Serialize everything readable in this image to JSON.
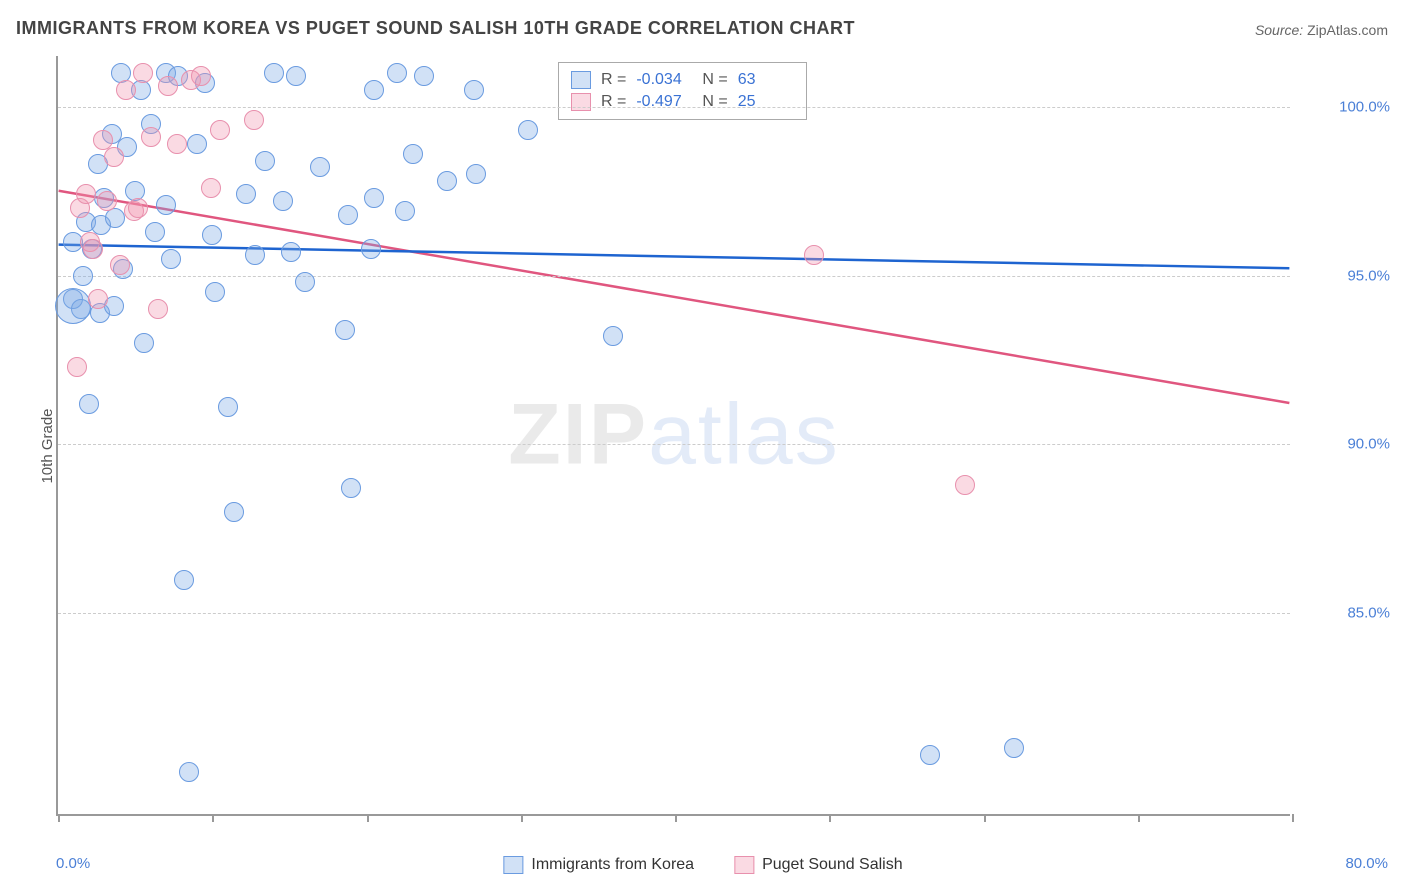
{
  "title": "IMMIGRANTS FROM KOREA VS PUGET SOUND SALISH 10TH GRADE CORRELATION CHART",
  "source_label": "Source:",
  "source_value": "ZipAtlas.com",
  "ylabel": "10th Grade",
  "watermark": {
    "zip": "ZIP",
    "atlas": "atlas"
  },
  "colors": {
    "series_a_fill": "rgba(122,168,230,0.35)",
    "series_a_stroke": "#6a9be0",
    "series_b_fill": "rgba(240,148,175,0.35)",
    "series_b_stroke": "#e890ad",
    "trend_a": "#1e64d0",
    "trend_b": "#e0567f",
    "axis_label": "#4a7fd6",
    "text": "#555555",
    "grid": "#cccccc"
  },
  "chart": {
    "type": "scatter",
    "xlim": [
      0,
      80
    ],
    "ylim": [
      79,
      101.5
    ],
    "x_ticks": [
      0,
      10,
      20,
      30,
      40,
      50,
      60,
      70,
      80
    ],
    "y_gridlines": [
      85,
      90,
      95,
      100
    ],
    "x_labels": {
      "min": "0.0%",
      "max": "80.0%"
    },
    "y_labels": {
      "85": "85.0%",
      "90": "90.0%",
      "95": "95.0%",
      "100": "100.0%"
    },
    "point_radius": 10,
    "trend_line_width": 2.5,
    "series_a": {
      "name": "Immigrants from Korea",
      "r": "-0.034",
      "n": "63",
      "trend": {
        "x1": 0,
        "y1": 95.9,
        "x2": 80,
        "y2": 95.2
      },
      "points": [
        [
          1.0,
          96.0
        ],
        [
          1.0,
          94.3
        ],
        [
          1.5,
          94.0
        ],
        [
          1.6,
          95.0
        ],
        [
          1.8,
          96.6
        ],
        [
          2.0,
          91.2
        ],
        [
          2.2,
          95.8
        ],
        [
          2.6,
          98.3
        ],
        [
          2.7,
          93.9
        ],
        [
          2.8,
          96.5
        ],
        [
          3.0,
          97.3
        ],
        [
          3.5,
          99.2
        ],
        [
          3.6,
          94.1
        ],
        [
          3.7,
          96.7
        ],
        [
          4.1,
          101.0
        ],
        [
          4.2,
          95.2
        ],
        [
          4.5,
          98.8
        ],
        [
          5.0,
          97.5
        ],
        [
          5.4,
          100.5
        ],
        [
          5.6,
          93.0
        ],
        [
          6.0,
          99.5
        ],
        [
          6.3,
          96.3
        ],
        [
          7.0,
          101.0
        ],
        [
          7.0,
          97.1
        ],
        [
          7.3,
          95.5
        ],
        [
          7.8,
          100.9
        ],
        [
          8.2,
          86.0
        ],
        [
          8.5,
          80.3
        ],
        [
          9.0,
          98.9
        ],
        [
          9.5,
          100.7
        ],
        [
          10.0,
          96.2
        ],
        [
          10.2,
          94.5
        ],
        [
          11.0,
          91.1
        ],
        [
          11.4,
          88.0
        ],
        [
          12.2,
          97.4
        ],
        [
          12.8,
          95.6
        ],
        [
          13.4,
          98.4
        ],
        [
          14.0,
          101.0
        ],
        [
          14.6,
          97.2
        ],
        [
          15.1,
          95.7
        ],
        [
          15.4,
          100.9
        ],
        [
          16.0,
          94.8
        ],
        [
          17.0,
          98.2
        ],
        [
          18.6,
          93.4
        ],
        [
          18.8,
          96.8
        ],
        [
          19.0,
          88.7
        ],
        [
          20.3,
          95.8
        ],
        [
          20.5,
          100.5
        ],
        [
          20.5,
          97.3
        ],
        [
          22.0,
          101.0
        ],
        [
          22.5,
          96.9
        ],
        [
          23.0,
          98.6
        ],
        [
          23.7,
          100.9
        ],
        [
          25.2,
          97.8
        ],
        [
          27.0,
          100.5
        ],
        [
          27.1,
          98.0
        ],
        [
          30.5,
          99.3
        ],
        [
          36.0,
          93.2
        ],
        [
          56.5,
          80.8
        ],
        [
          62.0,
          81.0
        ]
      ],
      "big_points": [
        [
          1.0,
          94.1,
          18
        ]
      ]
    },
    "series_b": {
      "name": "Puget Sound Salish",
      "r": "-0.497",
      "n": "25",
      "trend": {
        "x1": 0,
        "y1": 97.5,
        "x2": 80,
        "y2": 91.2
      },
      "points": [
        [
          1.2,
          92.3
        ],
        [
          1.4,
          97.0
        ],
        [
          1.8,
          97.4
        ],
        [
          2.1,
          96.0
        ],
        [
          2.3,
          95.8
        ],
        [
          2.6,
          94.3
        ],
        [
          2.9,
          99.0
        ],
        [
          3.2,
          97.2
        ],
        [
          3.6,
          98.5
        ],
        [
          4.0,
          95.3
        ],
        [
          4.4,
          100.5
        ],
        [
          4.9,
          96.9
        ],
        [
          5.2,
          97.0
        ],
        [
          5.5,
          101.0
        ],
        [
          6.0,
          99.1
        ],
        [
          6.5,
          94.0
        ],
        [
          7.1,
          100.6
        ],
        [
          7.7,
          98.9
        ],
        [
          8.6,
          100.8
        ],
        [
          9.3,
          100.9
        ],
        [
          9.9,
          97.6
        ],
        [
          10.5,
          99.3
        ],
        [
          12.7,
          99.6
        ],
        [
          49.0,
          95.6
        ],
        [
          58.8,
          88.8
        ]
      ]
    }
  },
  "legend": {
    "r_label": "R =",
    "n_label": "N =",
    "bottom_a": "Immigrants from Korea",
    "bottom_b": "Puget Sound Salish"
  }
}
